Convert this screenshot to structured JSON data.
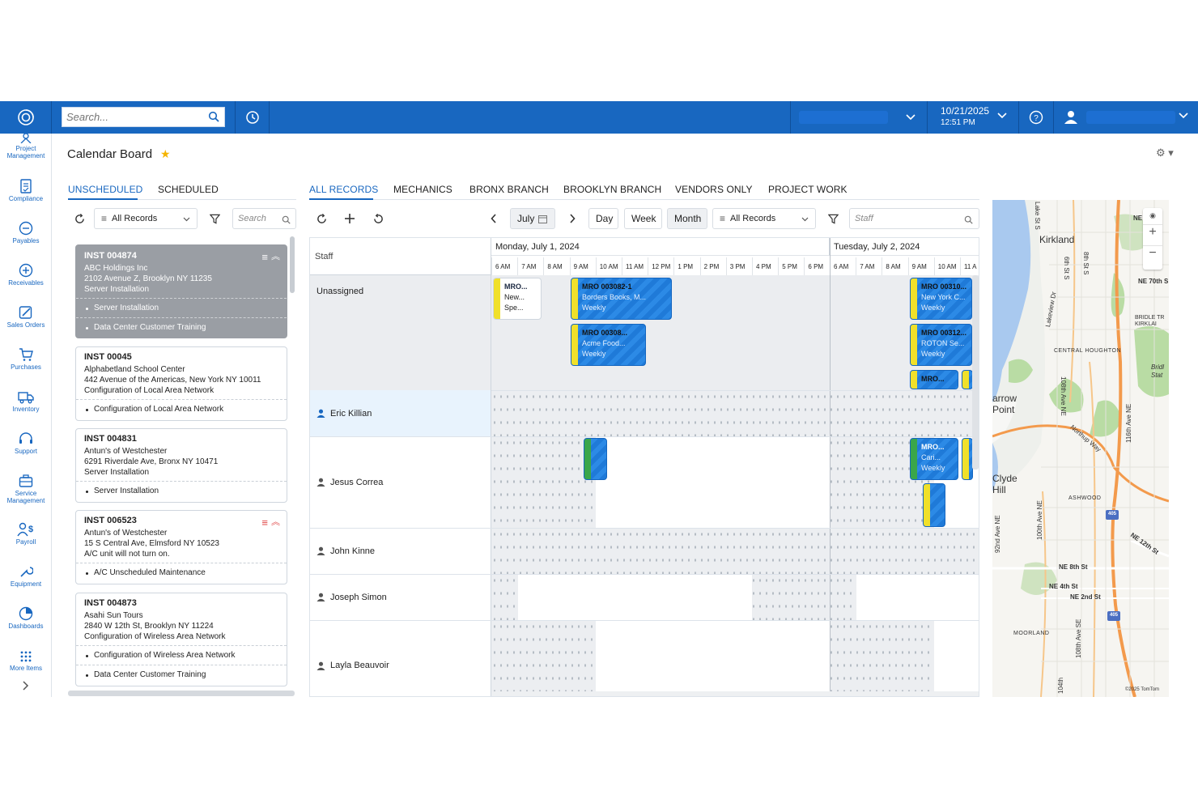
{
  "topbar": {
    "search_placeholder": "Search...",
    "date": "10/21/2025",
    "time": "12:51 PM"
  },
  "nav": [
    {
      "label": "Project Management",
      "icon": "project-management-icon"
    },
    {
      "label": "Compliance",
      "icon": "compliance-icon"
    },
    {
      "label": "Payables",
      "icon": "payables-icon"
    },
    {
      "label": "Receivables",
      "icon": "receivables-icon"
    },
    {
      "label": "Sales Orders",
      "icon": "sales-orders-icon"
    },
    {
      "label": "Purchases",
      "icon": "purchases-icon"
    },
    {
      "label": "Inventory",
      "icon": "inventory-icon"
    },
    {
      "label": "Support",
      "icon": "support-icon"
    },
    {
      "label": "Service Management",
      "icon": "service-management-icon"
    },
    {
      "label": "Payroll",
      "icon": "payroll-icon"
    },
    {
      "label": "Equipment",
      "icon": "equipment-icon"
    },
    {
      "label": "Dashboards",
      "icon": "dashboards-icon"
    },
    {
      "label": "More Items",
      "icon": "more-items-icon"
    }
  ],
  "page": {
    "title": "Calendar Board"
  },
  "left_tabs": [
    "UNSCHEDULED",
    "SCHEDULED"
  ],
  "left_toolbar": {
    "filter": "All Records",
    "search_placeholder": "Search"
  },
  "cards": [
    {
      "id": "INST 004874",
      "lines": [
        "ABC Holdings Inc",
        "2102 Avenue Z, Brooklyn NY 11235",
        "Server Installation"
      ],
      "tasks": [
        "Server Installation",
        "Data Center Customer Training"
      ]
    },
    {
      "id": "INST 00045",
      "lines": [
        "Alphabetland School Center",
        "442 Avenue of the Americas, New York NY 10011",
        "Configuration of Local Area Network"
      ],
      "tasks": [
        "Configuration of Local Area Network"
      ]
    },
    {
      "id": "INST 004831",
      "lines": [
        "Antun's of Westchester",
        "6291 Riverdale Ave, Bronx NY 10471",
        "Server Installation"
      ],
      "tasks": [
        "Server Installation"
      ]
    },
    {
      "id": "INST 006523",
      "lines": [
        "Antun's of Westchester",
        "15 S Central Ave, Elmsford NY 10523",
        "A/C unit will not turn on."
      ],
      "tasks": [
        "A/C Unscheduled Maintenance"
      ]
    },
    {
      "id": "INST 004873",
      "lines": [
        "Asahi Sun Tours",
        "2840 W 12th St, Brooklyn NY 11224",
        "Configuration of Wireless Area Network"
      ],
      "tasks": [
        "Configuration of Wireless Area Network",
        "Data Center Customer Training"
      ]
    }
  ],
  "cal_tabs": [
    "ALL RECORDS",
    "MECHANICS",
    "BRONX BRANCH",
    "BROOKLYN BRANCH",
    "VENDORS ONLY",
    "PROJECT WORK"
  ],
  "cal_toolbar": {
    "month": "July",
    "views": [
      "Day",
      "Week",
      "Month"
    ],
    "filter": "All Records",
    "staff_placeholder": "Staff"
  },
  "calendar": {
    "staff_header": "Staff",
    "days": [
      "Monday, July 1, 2024",
      "Tuesday, July 2, 2024"
    ],
    "hours": [
      "6 AM",
      "7 AM",
      "8 AM",
      "9 AM",
      "10 AM",
      "11 AM",
      "12 PM",
      "1 PM",
      "2 PM",
      "3 PM",
      "4 PM",
      "5 PM",
      "6 PM"
    ],
    "hours_day2": [
      "6 AM",
      "7 AM",
      "8 AM",
      "9 AM",
      "10 AM",
      "11 A"
    ],
    "staff": [
      "Unassigned",
      "Eric Killian",
      "Jesus Correa",
      "John Kinne",
      "Joseph Simon",
      "Layla Beauvoir"
    ],
    "events": [
      {
        "l1": "MRO...",
        "l2": "New...",
        "l3": "Spe..."
      },
      {
        "l1": "MRO 003082-1",
        "l2": "Borders Books, M...",
        "l3": "Weekly"
      },
      {
        "l1": "MRO 00308...",
        "l2": "Acme Food...",
        "l3": "Weekly"
      },
      {
        "l1": "MRO 00310...",
        "l2": "New York C...",
        "l3": "Weekly"
      },
      {
        "l1": "MRO 00312...",
        "l2": "ROTON Se...",
        "l3": "Weekly"
      },
      {
        "l1": "MRO...",
        "l2": "",
        "l3": ""
      },
      {
        "l1": "MRO...",
        "l2": "Cari...",
        "l3": "Weekly"
      }
    ]
  },
  "map": {
    "labels": [
      "Kirkland",
      "NE 70th S",
      "BRIDLE TR KIRKLAI",
      "CENTRAL HOUGHTON",
      "Bridl Stat",
      "arrow Point",
      "Clyde Hill",
      "ASHWOOD",
      "NE 12th St",
      "NE 8th St",
      "NE 4th St",
      "NE 2nd St",
      "MOORLAND",
      "©2025 TomTom",
      "Northup Way",
      "108th Ave NE",
      "116th Ave NE",
      "92nd Ave NE",
      "100th Ave NE",
      "Lake St S",
      "6th St S",
      "8th St S",
      "Lakeview Dr",
      "108th Ave SE",
      "104th",
      "405",
      "NE"
    ]
  },
  "colors": {
    "brand": "#1867c0",
    "event_blue": "#1f7ad8",
    "event_yellow": "#f0e02a",
    "event_green": "#3aa64a"
  }
}
